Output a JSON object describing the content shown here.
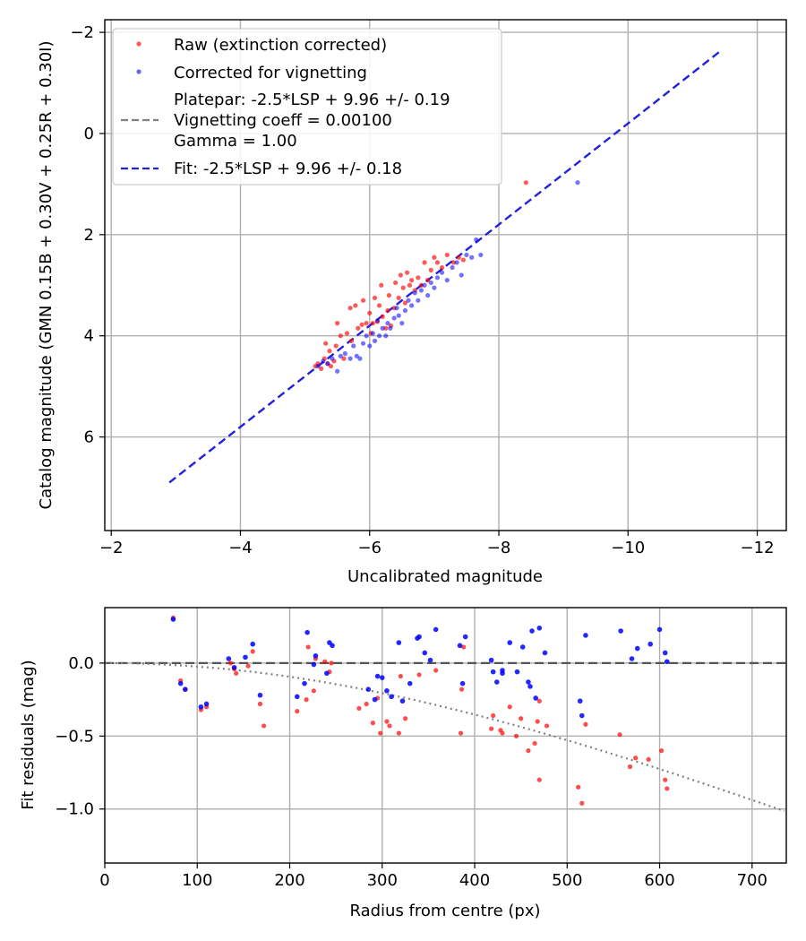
{
  "chart_data": [
    {
      "type": "scatter",
      "title": "",
      "xlabel": "Uncalibrated magnitude",
      "ylabel": "Catalog magnitude (GMN 0.15B + 0.30V + 0.25R + 0.30I)",
      "xlim": [
        -1.9,
        -12.45
      ],
      "ylim": [
        7.85,
        -2.25
      ],
      "xticks": [
        -2,
        -4,
        -6,
        -8,
        -10,
        -12
      ],
      "xtick_labels": [
        "−2",
        "−4",
        "−6",
        "−8",
        "−10",
        "−12"
      ],
      "yticks": [
        -2,
        0,
        2,
        4,
        6
      ],
      "ytick_labels": [
        "−2",
        "0",
        "2",
        "4",
        "6"
      ],
      "grid": true,
      "legend_position": "top-left",
      "legend": [
        {
          "label": "Raw (extinction corrected)",
          "marker": "dot",
          "color": "#ff0000"
        },
        {
          "label": "Corrected for vignetting",
          "marker": "dot",
          "color": "#0000ff"
        },
        {
          "label": "Platepar: -2.5*LSP + 9.96 +/- 0.19",
          "marker": "none",
          "color": ""
        },
        {
          "label": "Vignetting coeff = 0.00100",
          "marker": "dash",
          "color": "#808080"
        },
        {
          "label": "Gamma = 1.00",
          "marker": "none",
          "color": ""
        },
        {
          "label": "Fit: -2.5*LSP + 9.96 +/- 0.18",
          "marker": "dash",
          "color": "#2222dd"
        }
      ],
      "fit_line": {
        "slope": 1.0,
        "intercept": 9.96,
        "color": "#2222dd"
      },
      "series": [
        {
          "name": "Raw (extinction corrected)",
          "color": "#ff0000",
          "points": [
            [
              -5.16,
              4.6
            ],
            [
              -5.2,
              4.55
            ],
            [
              -5.25,
              4.65
            ],
            [
              -5.3,
              4.45
            ],
            [
              -5.32,
              4.15
            ],
            [
              -5.35,
              4.55
            ],
            [
              -5.38,
              4.3
            ],
            [
              -5.4,
              4.6
            ],
            [
              -5.45,
              4.5
            ],
            [
              -5.48,
              4.2
            ],
            [
              -5.5,
              3.75
            ],
            [
              -5.55,
              4.0
            ],
            [
              -5.6,
              4.45
            ],
            [
              -5.65,
              3.95
            ],
            [
              -5.7,
              3.45
            ],
            [
              -5.72,
              4.1
            ],
            [
              -5.78,
              3.4
            ],
            [
              -5.82,
              3.85
            ],
            [
              -5.88,
              3.78
            ],
            [
              -5.9,
              3.3
            ],
            [
              -5.95,
              3.75
            ],
            [
              -6.0,
              3.55
            ],
            [
              -6.02,
              3.95
            ],
            [
              -6.05,
              3.75
            ],
            [
              -6.08,
              3.25
            ],
            [
              -6.12,
              3.72
            ],
            [
              -6.15,
              3.4
            ],
            [
              -6.18,
              3.0
            ],
            [
              -6.2,
              3.62
            ],
            [
              -6.25,
              3.85
            ],
            [
              -6.28,
              3.5
            ],
            [
              -6.3,
              3.2
            ],
            [
              -6.33,
              3.8
            ],
            [
              -6.38,
              3.45
            ],
            [
              -6.4,
              2.95
            ],
            [
              -6.45,
              3.25
            ],
            [
              -6.48,
              2.8
            ],
            [
              -6.52,
              3.05
            ],
            [
              -6.55,
              3.35
            ],
            [
              -6.58,
              2.75
            ],
            [
              -6.62,
              3.0
            ],
            [
              -6.65,
              2.9
            ],
            [
              -6.7,
              3.1
            ],
            [
              -6.75,
              2.85
            ],
            [
              -6.8,
              3.0
            ],
            [
              -6.85,
              2.55
            ],
            [
              -6.9,
              2.9
            ],
            [
              -6.95,
              2.7
            ],
            [
              -7.0,
              2.45
            ],
            [
              -7.05,
              2.55
            ],
            [
              -7.12,
              2.65
            ],
            [
              -7.2,
              2.4
            ],
            [
              -7.3,
              2.55
            ],
            [
              -7.38,
              2.45
            ],
            [
              -7.45,
              2.5
            ],
            [
              -8.42,
              0.97
            ]
          ]
        },
        {
          "name": "Corrected for vignetting",
          "color": "#0000ff",
          "points": [
            [
              -5.2,
              4.6
            ],
            [
              -5.28,
              4.5
            ],
            [
              -5.35,
              4.55
            ],
            [
              -5.42,
              4.45
            ],
            [
              -5.5,
              4.7
            ],
            [
              -5.55,
              4.4
            ],
            [
              -5.62,
              4.35
            ],
            [
              -5.7,
              4.45
            ],
            [
              -5.75,
              4.2
            ],
            [
              -5.8,
              4.4
            ],
            [
              -5.85,
              4.45
            ],
            [
              -5.9,
              4.15
            ],
            [
              -5.95,
              4.0
            ],
            [
              -6.0,
              4.2
            ],
            [
              -6.05,
              3.95
            ],
            [
              -6.08,
              4.1
            ],
            [
              -6.12,
              3.7
            ],
            [
              -6.15,
              4.0
            ],
            [
              -6.2,
              3.85
            ],
            [
              -6.25,
              4.0
            ],
            [
              -6.28,
              3.75
            ],
            [
              -6.32,
              3.85
            ],
            [
              -6.38,
              3.65
            ],
            [
              -6.42,
              3.45
            ],
            [
              -6.45,
              3.6
            ],
            [
              -6.5,
              3.75
            ],
            [
              -6.55,
              3.5
            ],
            [
              -6.6,
              3.3
            ],
            [
              -6.65,
              3.4
            ],
            [
              -6.7,
              3.15
            ],
            [
              -6.75,
              3.3
            ],
            [
              -6.8,
              3.1
            ],
            [
              -6.85,
              3.0
            ],
            [
              -6.9,
              3.2
            ],
            [
              -6.95,
              2.95
            ],
            [
              -7.0,
              3.05
            ],
            [
              -7.05,
              2.85
            ],
            [
              -7.12,
              2.75
            ],
            [
              -7.2,
              2.9
            ],
            [
              -7.28,
              2.65
            ],
            [
              -7.35,
              2.55
            ],
            [
              -7.42,
              2.8
            ],
            [
              -7.5,
              2.4
            ],
            [
              -7.58,
              2.45
            ],
            [
              -7.65,
              2.1
            ],
            [
              -7.72,
              2.4
            ],
            [
              -9.22,
              0.97
            ]
          ]
        }
      ]
    },
    {
      "type": "scatter",
      "title": "",
      "xlabel": "Radius from centre (px)",
      "ylabel": "Fit residuals (mag)",
      "xlim": [
        0,
        737
      ],
      "ylim": [
        -1.37,
        0.38
      ],
      "xticks": [
        0,
        100,
        200,
        300,
        400,
        500,
        600,
        700
      ],
      "xtick_labels": [
        "0",
        "100",
        "200",
        "300",
        "400",
        "500",
        "600",
        "700"
      ],
      "yticks": [
        0.0,
        -0.5,
        -1.0
      ],
      "ytick_labels": [
        "0.0",
        "−0.5",
        "−1.0"
      ],
      "grid": true,
      "zero_line": {
        "y": 0.0,
        "color": "#555555"
      },
      "model_curve": {
        "description": "vignetting model",
        "color": "#808080",
        "coeff": 0.001
      },
      "series": [
        {
          "name": "Raw (extinction corrected)",
          "color": "#ff0000",
          "points": [
            [
              74,
              0.31
            ],
            [
              82,
              -0.12
            ],
            [
              87,
              -0.18
            ],
            [
              104,
              -0.32
            ],
            [
              110,
              -0.3
            ],
            [
              136,
              0.0
            ],
            [
              140,
              -0.04
            ],
            [
              142,
              -0.07
            ],
            [
              155,
              -0.02
            ],
            [
              160,
              0.08
            ],
            [
              168,
              -0.28
            ],
            [
              172,
              -0.43
            ],
            [
              208,
              -0.33
            ],
            [
              218,
              -0.25
            ],
            [
              220,
              0.11
            ],
            [
              226,
              -0.19
            ],
            [
              228,
              0.03
            ],
            [
              238,
              0.01
            ],
            [
              243,
              -0.06
            ],
            [
              245,
              0.0
            ],
            [
              275,
              -0.31
            ],
            [
              283,
              -0.28
            ],
            [
              290,
              -0.41
            ],
            [
              295,
              -0.24
            ],
            [
              298,
              -0.48
            ],
            [
              305,
              -0.4
            ],
            [
              308,
              -0.43
            ],
            [
              318,
              -0.48
            ],
            [
              320,
              -0.09
            ],
            [
              325,
              -0.38
            ],
            [
              340,
              -0.08
            ],
            [
              358,
              -0.05
            ],
            [
              385,
              -0.48
            ],
            [
              386,
              -0.18
            ],
            [
              388,
              0.11
            ],
            [
              418,
              -0.45
            ],
            [
              420,
              -0.36
            ],
            [
              428,
              -0.46
            ],
            [
              430,
              -0.48
            ],
            [
              438,
              -0.3
            ],
            [
              445,
              -0.5
            ],
            [
              450,
              -0.38
            ],
            [
              458,
              -0.6
            ],
            [
              465,
              -0.55
            ],
            [
              468,
              -0.4
            ],
            [
              470,
              -0.26
            ],
            [
              470,
              -0.8
            ],
            [
              478,
              -0.43
            ],
            [
              512,
              -0.85
            ],
            [
              516,
              -0.96
            ],
            [
              520,
              -0.42
            ],
            [
              557,
              -0.49
            ],
            [
              568,
              -0.71
            ],
            [
              574,
              -0.65
            ],
            [
              588,
              -0.66
            ],
            [
              602,
              -0.6
            ],
            [
              606,
              -0.8
            ],
            [
              608,
              -0.86
            ]
          ]
        },
        {
          "name": "Corrected for vignetting",
          "color": "#0000ff",
          "points": [
            [
              74,
              0.3
            ],
            [
              82,
              -0.14
            ],
            [
              87,
              -0.18
            ],
            [
              104,
              -0.3
            ],
            [
              110,
              -0.28
            ],
            [
              134,
              0.03
            ],
            [
              140,
              -0.03
            ],
            [
              152,
              0.04
            ],
            [
              160,
              0.13
            ],
            [
              168,
              -0.22
            ],
            [
              208,
              -0.23
            ],
            [
              216,
              -0.14
            ],
            [
              219,
              0.21
            ],
            [
              226,
              -0.01
            ],
            [
              228,
              0.05
            ],
            [
              240,
              -0.07
            ],
            [
              243,
              0.14
            ],
            [
              246,
              0.12
            ],
            [
              285,
              -0.18
            ],
            [
              292,
              -0.25
            ],
            [
              295,
              -0.09
            ],
            [
              300,
              -0.1
            ],
            [
              305,
              -0.19
            ],
            [
              310,
              -0.23
            ],
            [
              318,
              0.14
            ],
            [
              322,
              -0.26
            ],
            [
              330,
              -0.14
            ],
            [
              338,
              0.17
            ],
            [
              340,
              0.18
            ],
            [
              346,
              0.07
            ],
            [
              352,
              0.02
            ],
            [
              358,
              0.23
            ],
            [
              384,
              0.12
            ],
            [
              387,
              -0.14
            ],
            [
              390,
              0.18
            ],
            [
              418,
              0.02
            ],
            [
              420,
              -0.06
            ],
            [
              424,
              -0.13
            ],
            [
              430,
              -0.07
            ],
            [
              430,
              -0.05
            ],
            [
              438,
              0.14
            ],
            [
              446,
              -0.06
            ],
            [
              452,
              0.11
            ],
            [
              458,
              -0.13
            ],
            [
              460,
              -0.16
            ],
            [
              462,
              0.22
            ],
            [
              466,
              -0.24
            ],
            [
              470,
              0.24
            ],
            [
              476,
              0.07
            ],
            [
              514,
              -0.26
            ],
            [
              516,
              -0.36
            ],
            [
              520,
              0.19
            ],
            [
              558,
              0.22
            ],
            [
              570,
              0.03
            ],
            [
              576,
              0.1
            ],
            [
              590,
              0.13
            ],
            [
              600,
              0.23
            ],
            [
              606,
              0.07
            ],
            [
              608,
              0.01
            ]
          ]
        }
      ]
    }
  ]
}
